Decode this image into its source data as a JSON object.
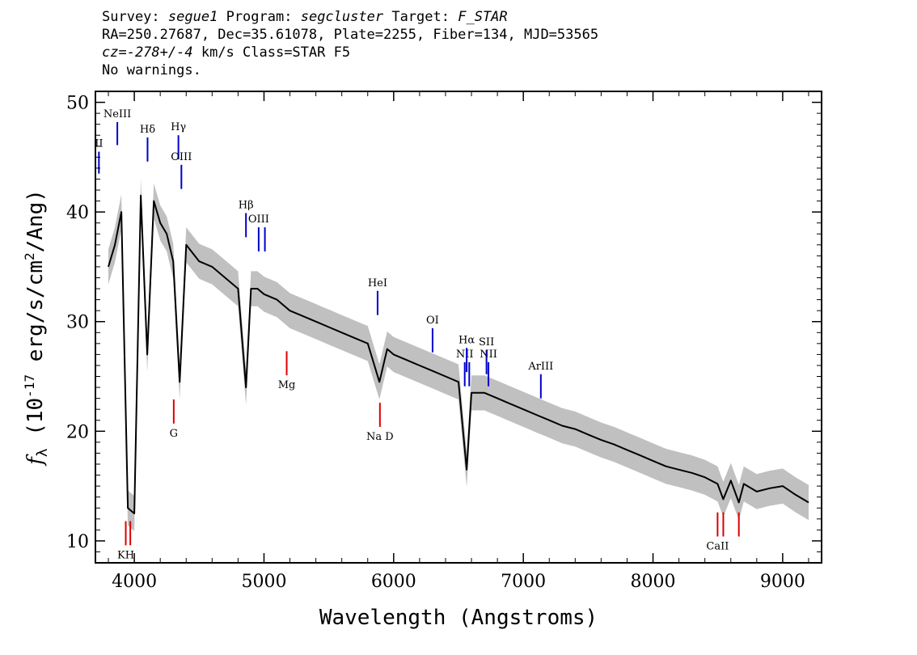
{
  "header": {
    "line1": {
      "survey_label": "Survey:",
      "survey": "segue1",
      "program_label": "Program:",
      "program": "segcluster",
      "target_label": "Target:",
      "target": "F_STAR"
    },
    "line2": "RA=250.27687, Dec=35.61078, Plate=2255, Fiber=134, MJD=53565",
    "line3": {
      "cz": "cz=-278+/-4",
      "rest": "km/s Class=STAR F5"
    },
    "line4": "No warnings."
  },
  "colors": {
    "flux": "#000000",
    "error_band": "#c0c0c0",
    "emission": "#0000cc",
    "absorption": "#dd0000"
  },
  "chart_data": {
    "type": "line",
    "xlabel": "Wavelength (Angstroms)",
    "ylabel": "f_λ (10^-17 erg/s/cm^2/Ang)",
    "xlim": [
      3700,
      9300
    ],
    "ylim": [
      8,
      51
    ],
    "x_ticks": [
      4000,
      5000,
      6000,
      7000,
      8000,
      9000
    ],
    "y_ticks": [
      10,
      20,
      30,
      40,
      50
    ],
    "series": [
      {
        "x": [
          3800,
          3850,
          3900,
          3950,
          4000,
          4050,
          4100,
          4150,
          4200,
          4250,
          4300,
          4350,
          4400,
          4500,
          4600,
          4700,
          4800,
          4861,
          4900,
          4950,
          5000,
          5100,
          5200,
          5300,
          5400,
          5500,
          5600,
          5700,
          5800,
          5890,
          5950,
          6000,
          6100,
          6200,
          6300,
          6400,
          6500,
          6563,
          6600,
          6700,
          6800,
          6900,
          7000,
          7100,
          7200,
          7300,
          7400,
          7500,
          7600,
          7700,
          7800,
          7900,
          8000,
          8100,
          8200,
          8300,
          8400,
          8498,
          8542,
          8600,
          8662,
          8700,
          8800,
          8900,
          9000,
          9100,
          9200
        ],
        "y": [
          35,
          37,
          40,
          13,
          12.5,
          41.5,
          27,
          41,
          39,
          38,
          35.5,
          24.5,
          37,
          35.5,
          35,
          34,
          33,
          24,
          33,
          33,
          32.5,
          32,
          31,
          30.5,
          30,
          29.5,
          29,
          28.5,
          28,
          24.5,
          27.5,
          27,
          26.5,
          26,
          25.5,
          25,
          24.5,
          16.5,
          23.5,
          23.5,
          23,
          22.5,
          22,
          21.5,
          21,
          20.5,
          20.2,
          19.7,
          19.2,
          18.8,
          18.3,
          17.8,
          17.3,
          16.8,
          16.5,
          16.2,
          15.8,
          15.2,
          13.8,
          15.5,
          13.5,
          15.2,
          14.5,
          14.8,
          15,
          14.2,
          13.5
        ]
      }
    ],
    "emission_lines": [
      {
        "label": "II",
        "x": 3727,
        "top": 45.5,
        "bottom": 43.5
      },
      {
        "label": "NeIII",
        "x": 3869,
        "top": 48.2,
        "bottom": 46.1
      },
      {
        "label": "Hδ",
        "x": 4102,
        "top": 46.8,
        "bottom": 44.6
      },
      {
        "label": "Hγ",
        "x": 4340,
        "top": 47.0,
        "bottom": 44.8
      },
      {
        "label": "OIII",
        "x": 4363,
        "top": 44.3,
        "bottom": 42.1
      },
      {
        "label": "Hβ",
        "x": 4861,
        "top": 39.9,
        "bottom": 37.7
      },
      {
        "label": "OIII",
        "x": 4959,
        "top": 38.6,
        "bottom": 36.4
      },
      {
        "label": "",
        "x": 5007,
        "top": 38.6,
        "bottom": 36.4
      },
      {
        "label": "HeI",
        "x": 5876,
        "top": 32.8,
        "bottom": 30.6
      },
      {
        "label": "OI",
        "x": 6300,
        "top": 29.4,
        "bottom": 27.2
      },
      {
        "label": "NII",
        "x": 6548,
        "top": 26.3,
        "bottom": 24.1
      },
      {
        "label": "Hα",
        "x": 6563,
        "top": 27.6,
        "bottom": 25.4
      },
      {
        "label": "",
        "x": 6583,
        "top": 26.3,
        "bottom": 24.1
      },
      {
        "label": "SII",
        "x": 6716,
        "top": 27.4,
        "bottom": 25.2
      },
      {
        "label": "NII",
        "x": 6731,
        "top": 26.3,
        "bottom": 24.1
      },
      {
        "label": "ArIII",
        "x": 7135,
        "top": 25.2,
        "bottom": 23.0
      }
    ],
    "absorption_lines": [
      {
        "label": "G",
        "x": 4304,
        "top": 22.9,
        "bottom": 20.7
      },
      {
        "label": "Mg",
        "x": 5175,
        "top": 27.3,
        "bottom": 25.1
      },
      {
        "label": "Na D",
        "x": 5894,
        "top": 22.6,
        "bottom": 20.4
      },
      {
        "label": "KH",
        "x": 3934,
        "top": 11.8,
        "bottom": 9.6
      },
      {
        "label": "",
        "x": 3969,
        "top": 11.8,
        "bottom": 9.6
      },
      {
        "label": "CaII",
        "x": 8498,
        "top": 12.6,
        "bottom": 10.4
      },
      {
        "label": "",
        "x": 8542,
        "top": 12.6,
        "bottom": 10.4
      },
      {
        "label": "",
        "x": 8662,
        "top": 12.6,
        "bottom": 10.4
      }
    ]
  }
}
